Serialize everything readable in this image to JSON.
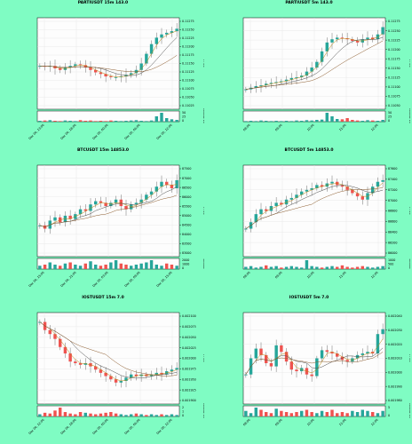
{
  "colors": {
    "page_background": "#7ffcc3",
    "plot_background": "#fdfdfd",
    "grid": "#e4e4e4",
    "up": "#26a69a",
    "down": "#ef5350",
    "ma_fast": "#b8860b",
    "ma_mid": "#4a4a4a",
    "ma_slow": "#8b5a2b"
  },
  "chart_data": [
    {
      "type": "candlestick",
      "title": "PARTIUSDT 15m 143.0",
      "ylabel": "Price",
      "volume_label": "Volume  10³",
      "yticks": [
        "0.11275",
        "0.11250",
        "0.11225",
        "0.11200",
        "0.11175",
        "0.11150",
        "0.11125",
        "0.11100",
        "0.11075",
        "0.11050",
        "0.11025"
      ],
      "volume_ticks": [
        "50",
        "25",
        "0"
      ],
      "xticks": [
        "Dec 04, 13:00",
        "Dec 04, 18:00",
        "Dec 05, 00:00",
        "Dec 05, 06:00",
        "Dec 05, 12:00"
      ],
      "trend": [
        0.47,
        0.46,
        0.47,
        0.44,
        0.42,
        0.45,
        0.47,
        0.49,
        0.48,
        0.45,
        0.42,
        0.39,
        0.37,
        0.34,
        0.33,
        0.33,
        0.34,
        0.36,
        0.38,
        0.42,
        0.5,
        0.62,
        0.74,
        0.82,
        0.86,
        0.88,
        0.9,
        0.93
      ],
      "volumes": [
        3,
        4,
        5,
        3,
        2,
        4,
        3,
        2,
        5,
        3,
        4,
        2,
        3,
        2,
        4,
        3,
        2,
        3,
        4,
        5,
        3,
        2,
        4,
        18,
        30,
        12,
        8,
        6
      ],
      "grid": true
    },
    {
      "type": "candlestick",
      "title": "PARTIUSDT 5m 143.0",
      "ylabel": "Price",
      "volume_label": "Volume  10³",
      "yticks": [
        "0.11275",
        "0.11250",
        "0.11225",
        "0.11200",
        "0.11175",
        "0.11150",
        "0.11125",
        "0.11100",
        "0.11075",
        "0.11050"
      ],
      "volume_ticks": [
        "50",
        "25",
        "0"
      ],
      "xticks": [
        "08:00",
        "09:00",
        "10:00",
        "11:00",
        "12:00"
      ],
      "trend": [
        0.18,
        0.2,
        0.22,
        0.23,
        0.25,
        0.26,
        0.27,
        0.28,
        0.3,
        0.32,
        0.33,
        0.35,
        0.4,
        0.45,
        0.52,
        0.65,
        0.76,
        0.8,
        0.82,
        0.81,
        0.8,
        0.78,
        0.76,
        0.8,
        0.82,
        0.8,
        0.86,
        0.95
      ],
      "volumes": [
        2,
        3,
        2,
        4,
        3,
        2,
        3,
        2,
        3,
        2,
        4,
        3,
        5,
        4,
        6,
        7,
        30,
        18,
        9,
        8,
        12,
        6,
        4,
        3,
        5,
        4,
        3,
        6
      ],
      "grid": true
    },
    {
      "type": "candlestick",
      "title": "BTCUSDT 15m 14853.0",
      "ylabel": "Price",
      "volume_label": "Volume",
      "yticks": [
        "87500",
        "87000",
        "86500",
        "86000",
        "85500",
        "85000",
        "84500",
        "84000",
        "83500",
        "83000"
      ],
      "volume_ticks": [
        "2000",
        "1000",
        "0"
      ],
      "xticks": [
        "Dec 04, 15:00",
        "Dec 04, 21:00",
        "Dec 05, 03:00",
        "Dec 05, 09:00",
        "Dec 05, 15:00"
      ],
      "trend": [
        0.32,
        0.28,
        0.38,
        0.42,
        0.36,
        0.44,
        0.4,
        0.46,
        0.52,
        0.5,
        0.58,
        0.62,
        0.6,
        0.56,
        0.6,
        0.64,
        0.56,
        0.52,
        0.58,
        0.6,
        0.64,
        0.7,
        0.74,
        0.8,
        0.86,
        0.82,
        0.78,
        0.88
      ],
      "volumes": [
        3,
        4,
        6,
        4,
        3,
        5,
        6,
        4,
        3,
        5,
        7,
        4,
        3,
        4,
        6,
        8,
        5,
        4,
        3,
        4,
        5,
        6,
        8,
        4,
        3,
        5,
        4,
        3
      ],
      "grid": true
    },
    {
      "type": "candlestick",
      "title": "BTCUSDT 5m 14853.0",
      "ylabel": "Price",
      "volume_label": "Volume",
      "yticks": [
        "87600",
        "87400",
        "87200",
        "87000",
        "86800",
        "86600",
        "86400",
        "86200",
        "86000"
      ],
      "volume_ticks": [
        "1000",
        "500",
        "0"
      ],
      "xticks": [
        "08:00",
        "09:00",
        "10:00",
        "11:00",
        "12:00"
      ],
      "trend": [
        0.28,
        0.36,
        0.46,
        0.52,
        0.5,
        0.56,
        0.6,
        0.58,
        0.64,
        0.66,
        0.7,
        0.74,
        0.76,
        0.78,
        0.82,
        0.8,
        0.84,
        0.86,
        0.82,
        0.8,
        0.76,
        0.72,
        0.68,
        0.64,
        0.72,
        0.8,
        0.86,
        0.88
      ],
      "volumes": [
        3,
        4,
        2,
        3,
        5,
        3,
        4,
        2,
        3,
        4,
        3,
        2,
        12,
        4,
        3,
        2,
        3,
        4,
        3,
        5,
        3,
        2,
        3,
        4,
        3,
        2,
        3,
        4
      ],
      "grid": true
    },
    {
      "type": "candlestick",
      "title": "IOSTUSDT 15m 7.0",
      "ylabel": "Price",
      "volume_label": "Volume  10⁶",
      "yticks": [
        "0.002100",
        "0.002075",
        "0.002050",
        "0.002025",
        "0.002000",
        "0.001975",
        "0.001950",
        "0.001925",
        "0.001900"
      ],
      "volume_ticks": [
        "2",
        "1",
        "0"
      ],
      "xticks": [
        "Dec 04, 12:00",
        "Dec 04, 18:00",
        "Dec 05, 00:00",
        "Dec 05, 06:00",
        "Dec 05, 12:00"
      ],
      "trend": [
        0.95,
        0.85,
        0.8,
        0.74,
        0.64,
        0.56,
        0.46,
        0.44,
        0.42,
        0.44,
        0.4,
        0.36,
        0.32,
        0.28,
        0.24,
        0.2,
        0.22,
        0.26,
        0.3,
        0.28,
        0.3,
        0.28,
        0.3,
        0.32,
        0.3,
        0.34,
        0.36,
        0.38
      ],
      "volumes": [
        3,
        5,
        4,
        8,
        12,
        6,
        4,
        3,
        6,
        5,
        4,
        3,
        4,
        5,
        6,
        4,
        3,
        2,
        3,
        4,
        3,
        2,
        3,
        2,
        3,
        2,
        3,
        2
      ],
      "grid": true
    },
    {
      "type": "candlestick",
      "title": "IOSTUSDT 5m 7.0",
      "ylabel": "Price",
      "volume_label": "Volume  10⁵",
      "yticks": [
        "0.002040",
        "0.002030",
        "0.002020",
        "0.002010",
        "0.002000",
        "0.001990",
        "0.001980"
      ],
      "volume_ticks": [
        "5",
        "0"
      ],
      "xticks": [
        "08:00",
        "09:00",
        "10:00",
        "11:00",
        "12:00"
      ],
      "trend": [
        0.3,
        0.5,
        0.62,
        0.54,
        0.44,
        0.4,
        0.66,
        0.58,
        0.46,
        0.36,
        0.34,
        0.38,
        0.3,
        0.28,
        0.5,
        0.6,
        0.58,
        0.56,
        0.52,
        0.48,
        0.46,
        0.5,
        0.54,
        0.56,
        0.58,
        0.56,
        0.8,
        0.86
      ],
      "volumes": [
        5,
        3,
        8,
        6,
        4,
        3,
        7,
        5,
        4,
        3,
        4,
        5,
        6,
        4,
        3,
        5,
        4,
        6,
        3,
        4,
        3,
        5,
        4,
        6,
        5,
        4,
        3,
        5
      ],
      "grid": true
    }
  ]
}
